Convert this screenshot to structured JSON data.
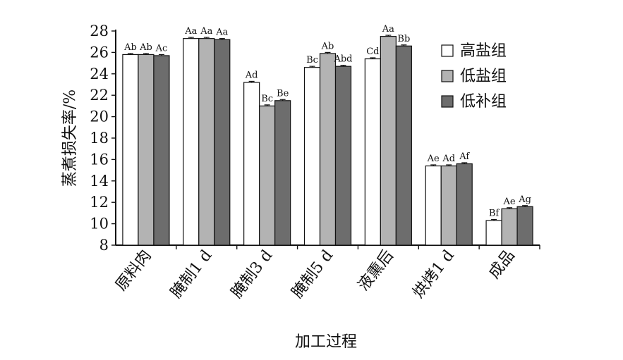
{
  "chart_data": {
    "type": "bar",
    "title": "",
    "xlabel": "加工过程",
    "ylabel": "蒸煮损失率/%",
    "ylim": [
      8,
      28
    ],
    "yticks": [
      8,
      10,
      12,
      14,
      16,
      18,
      20,
      22,
      24,
      26,
      28
    ],
    "grid": false,
    "legend_position": "top-right",
    "categories": [
      "原料肉",
      "腌制1 d",
      "腌制3 d",
      "腌制5 d",
      "液熏后",
      "烘烤1 d",
      "成品"
    ],
    "series": [
      {
        "name": "高盐组",
        "color": "#ffffff",
        "values": [
          25.8,
          27.3,
          23.2,
          24.6,
          25.4,
          15.4,
          10.3
        ],
        "errors": [
          0.1,
          0.1,
          0.1,
          0.1,
          0.1,
          0.1,
          0.1
        ],
        "labels": [
          "Ab",
          "Aa",
          "Ad",
          "Bc",
          "Cd",
          "Ae",
          "Bf"
        ]
      },
      {
        "name": "低盐组",
        "color": "#b3b3b3",
        "values": [
          25.8,
          27.3,
          21.0,
          25.9,
          27.5,
          15.4,
          11.4
        ],
        "errors": [
          0.1,
          0.1,
          0.1,
          0.1,
          0.1,
          0.1,
          0.1
        ],
        "labels": [
          "Ab",
          "Aa",
          "Bc",
          "Ab",
          "Aa",
          "Ad",
          "Ae"
        ]
      },
      {
        "name": "低补组",
        "color": "#6d6d6d",
        "values": [
          25.7,
          27.2,
          21.5,
          24.7,
          26.6,
          15.6,
          11.6
        ],
        "errors": [
          0.1,
          0.1,
          0.1,
          0.1,
          0.1,
          0.1,
          0.1
        ],
        "labels": [
          "Ac",
          "Aa",
          "Be",
          "Abd",
          "Bb",
          "Af",
          "Ag"
        ]
      }
    ]
  }
}
